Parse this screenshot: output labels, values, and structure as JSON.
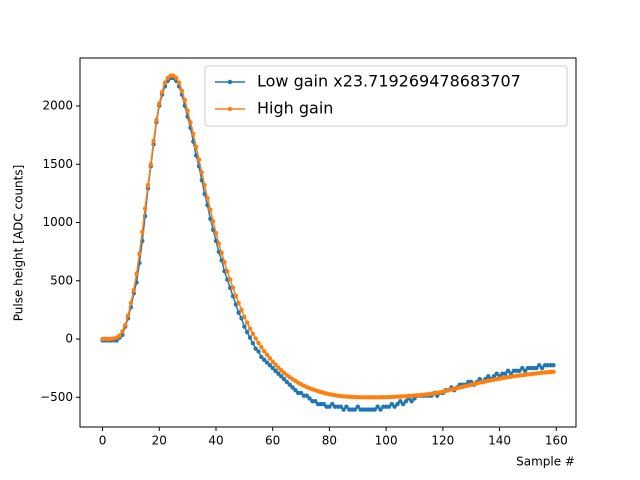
{
  "chart_data": {
    "type": "line",
    "xlabel": "Sample #",
    "ylabel": "Pulse height [ADC counts]",
    "xlim": [
      -7.95,
      166.95
    ],
    "xticks": [
      0,
      20,
      40,
      60,
      80,
      100,
      120,
      140,
      160
    ],
    "ylim": [
      -755,
      2412
    ],
    "yticks": [
      {
        "value": -500,
        "label": "−500"
      },
      0,
      500,
      1000,
      1500,
      2000
    ],
    "legend": "upper right",
    "x": [
      0,
      1,
      2,
      3,
      4,
      5,
      6,
      7,
      8,
      9,
      10,
      11,
      12,
      13,
      14,
      15,
      16,
      17,
      18,
      19,
      20,
      21,
      22,
      23,
      24,
      25,
      26,
      27,
      28,
      29,
      30,
      31,
      32,
      33,
      34,
      35,
      36,
      37,
      38,
      39,
      40,
      41,
      42,
      43,
      44,
      45,
      46,
      47,
      48,
      49,
      50,
      51,
      52,
      53,
      54,
      55,
      56,
      57,
      58,
      59,
      60,
      61,
      62,
      63,
      64,
      65,
      66,
      67,
      68,
      69,
      70,
      71,
      72,
      73,
      74,
      75,
      76,
      77,
      78,
      79,
      80,
      81,
      82,
      83,
      84,
      85,
      86,
      87,
      88,
      89,
      90,
      91,
      92,
      93,
      94,
      95,
      96,
      97,
      98,
      99,
      100,
      101,
      102,
      103,
      104,
      105,
      106,
      107,
      108,
      109,
      110,
      111,
      112,
      113,
      114,
      115,
      116,
      117,
      118,
      119,
      120,
      121,
      122,
      123,
      124,
      125,
      126,
      127,
      128,
      129,
      130,
      131,
      132,
      133,
      134,
      135,
      136,
      137,
      138,
      139,
      140,
      141,
      142,
      143,
      144,
      145,
      146,
      147,
      148,
      149,
      150,
      151,
      152,
      153,
      154,
      155,
      156,
      157,
      158,
      159
    ],
    "series": [
      {
        "name": "Low gain x23.719269478683707",
        "color": "#1f77b4",
        "values": [
          -12,
          -12,
          -12,
          -12,
          -12,
          -12,
          12,
          35,
          107,
          178,
          273,
          392,
          486,
          653,
          842,
          1055,
          1292,
          1482,
          1671,
          1861,
          2003,
          2098,
          2169,
          2216,
          2240,
          2240,
          2216,
          2169,
          2098,
          2003,
          1908,
          1813,
          1695,
          1576,
          1482,
          1363,
          1245,
          1150,
          1032,
          937,
          842,
          748,
          676,
          582,
          510,
          439,
          368,
          297,
          226,
          178,
          107,
          59,
          12,
          -36,
          -83,
          -107,
          -154,
          -178,
          -202,
          -225,
          -249,
          -273,
          -297,
          -320,
          -344,
          -368,
          -392,
          -415,
          -439,
          -463,
          -463,
          -486,
          -486,
          -510,
          -534,
          -534,
          -558,
          -558,
          -558,
          -581,
          -581,
          -558,
          -581,
          -581,
          -581,
          -605,
          -581,
          -605,
          -605,
          -605,
          -581,
          -605,
          -605,
          -605,
          -605,
          -605,
          -605,
          -581,
          -605,
          -581,
          -581,
          -581,
          -558,
          -581,
          -558,
          -534,
          -558,
          -534,
          -510,
          -534,
          -510,
          -486,
          -486,
          -486,
          -486,
          -486,
          -486,
          -463,
          -486,
          -463,
          -463,
          -439,
          -439,
          -415,
          -439,
          -415,
          -392,
          -392,
          -392,
          -368,
          -368,
          -392,
          -368,
          -344,
          -368,
          -344,
          -320,
          -344,
          -320,
          -297,
          -320,
          -297,
          -297,
          -273,
          -297,
          -273,
          -273,
          -273,
          -249,
          -273,
          -249,
          -249,
          -249,
          -249,
          -225,
          -249,
          -225,
          -225,
          -225,
          -225
        ]
      },
      {
        "name": "High gain",
        "color": "#ff7f0e",
        "values": [
          0,
          3,
          0,
          2,
          5,
          12,
          30,
          65,
          120,
          200,
          310,
          420,
          560,
          730,
          920,
          1120,
          1320,
          1500,
          1700,
          1880,
          2020,
          2120,
          2200,
          2240,
          2260,
          2260,
          2240,
          2200,
          2130,
          2050,
          1960,
          1860,
          1760,
          1650,
          1540,
          1430,
          1320,
          1210,
          1110,
          1010,
          910,
          820,
          740,
          660,
          580,
          510,
          440,
          370,
          310,
          250,
          190,
          140,
          90,
          45,
          5,
          -35,
          -70,
          -105,
          -135,
          -165,
          -195,
          -220,
          -245,
          -268,
          -290,
          -310,
          -328,
          -345,
          -360,
          -375,
          -388,
          -400,
          -412,
          -422,
          -432,
          -440,
          -448,
          -455,
          -462,
          -468,
          -474,
          -478,
          -482,
          -486,
          -490,
          -492,
          -494,
          -496,
          -497,
          -498,
          -499,
          -500,
          -500,
          -500,
          -500,
          -500,
          -500,
          -500,
          -500,
          -499,
          -499,
          -498,
          -497,
          -496,
          -495,
          -494,
          -493,
          -491,
          -489,
          -487,
          -485,
          -483,
          -481,
          -479,
          -476,
          -473,
          -470,
          -466,
          -462,
          -457,
          -452,
          -446,
          -440,
          -434,
          -428,
          -422,
          -416,
          -410,
          -404,
          -398,
          -392,
          -386,
          -380,
          -374,
          -369,
          -364,
          -359,
          -354,
          -349,
          -344,
          -340,
          -336,
          -332,
          -328,
          -324,
          -320,
          -316,
          -313,
          -310,
          -307,
          -304,
          -301,
          -298,
          -295,
          -292,
          -289,
          -287,
          -285,
          -283,
          -281
        ]
      }
    ]
  }
}
